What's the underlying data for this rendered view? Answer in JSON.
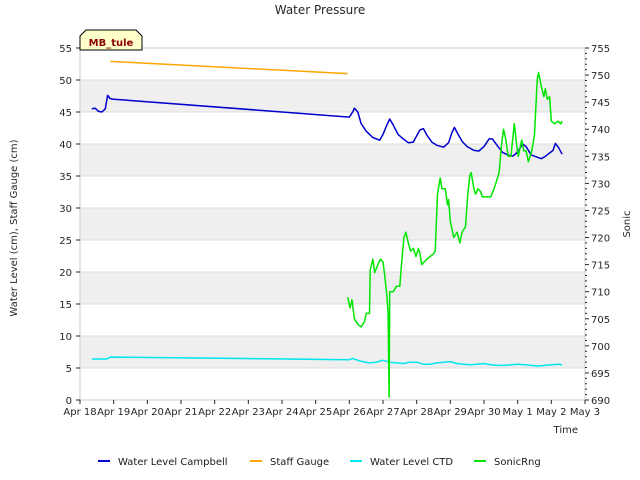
{
  "chart_data": {
    "type": "line",
    "title": "Water Pressure",
    "site_label": "MB_tule",
    "xlabel": "Time",
    "ylabel": "Water Level (cm), Staff Gauge (cm)",
    "y2label": "Sonic",
    "x_tick_labels": [
      "Apr 18",
      "Apr 19",
      "Apr 20",
      "Apr 21",
      "Apr 22",
      "Apr 23",
      "Apr 24",
      "Apr 25",
      "Apr 26",
      "Apr 27",
      "Apr 28",
      "Apr 29",
      "Apr 30",
      "May 1",
      "May 2",
      "May 3"
    ],
    "x_range_days": [
      0,
      15
    ],
    "ylim": [
      0,
      55
    ],
    "y_ticks": [
      0,
      5,
      10,
      15,
      20,
      25,
      30,
      35,
      40,
      45,
      50,
      55
    ],
    "y2lim": [
      690,
      755
    ],
    "y2_ticks": [
      690,
      695,
      700,
      705,
      710,
      715,
      720,
      725,
      730,
      735,
      740,
      745,
      750,
      755
    ],
    "series": [
      {
        "name": "Water Level Campbell",
        "axis": "left",
        "color": "#0000cd",
        "points": [
          [
            0.35,
            45.5
          ],
          [
            0.45,
            45.6
          ],
          [
            0.55,
            45.1
          ],
          [
            0.65,
            45.0
          ],
          [
            0.75,
            45.5
          ],
          [
            0.82,
            47.6
          ],
          [
            0.9,
            47.1
          ],
          [
            1.0,
            47.0
          ],
          [
            8.0,
            44.2
          ],
          [
            8.1,
            45.0
          ],
          [
            8.15,
            45.6
          ],
          [
            8.25,
            45.0
          ],
          [
            8.35,
            43.2
          ],
          [
            8.5,
            42.0
          ],
          [
            8.7,
            41.0
          ],
          [
            8.9,
            40.6
          ],
          [
            9.0,
            41.5
          ],
          [
            9.1,
            42.8
          ],
          [
            9.2,
            43.9
          ],
          [
            9.3,
            43.0
          ],
          [
            9.45,
            41.5
          ],
          [
            9.6,
            40.8
          ],
          [
            9.75,
            40.2
          ],
          [
            9.9,
            40.3
          ],
          [
            10.0,
            41.3
          ],
          [
            10.1,
            42.2
          ],
          [
            10.2,
            42.4
          ],
          [
            10.3,
            41.4
          ],
          [
            10.45,
            40.3
          ],
          [
            10.6,
            39.8
          ],
          [
            10.8,
            39.5
          ],
          [
            10.95,
            40.2
          ],
          [
            11.05,
            41.8
          ],
          [
            11.12,
            42.6
          ],
          [
            11.2,
            41.8
          ],
          [
            11.35,
            40.4
          ],
          [
            11.5,
            39.6
          ],
          [
            11.7,
            39.0
          ],
          [
            11.85,
            38.9
          ],
          [
            12.0,
            39.6
          ],
          [
            12.15,
            40.8
          ],
          [
            12.25,
            40.8
          ],
          [
            12.4,
            39.7
          ],
          [
            12.55,
            38.7
          ],
          [
            12.7,
            38.3
          ],
          [
            12.85,
            38.1
          ],
          [
            12.95,
            38.5
          ],
          [
            13.05,
            39.2
          ],
          [
            13.15,
            40.0
          ],
          [
            13.25,
            39.6
          ],
          [
            13.4,
            38.3
          ],
          [
            13.55,
            38.0
          ],
          [
            13.7,
            37.7
          ],
          [
            13.8,
            38.0
          ],
          [
            13.95,
            38.6
          ],
          [
            14.05,
            39.0
          ],
          [
            14.12,
            40.1
          ],
          [
            14.22,
            39.4
          ],
          [
            14.32,
            38.4
          ]
        ]
      },
      {
        "name": "Staff Gauge",
        "axis": "left",
        "color": "#ffa500",
        "points": [
          [
            0.9,
            52.9
          ],
          [
            7.95,
            51.0
          ]
        ]
      },
      {
        "name": "Water Level CTD",
        "axis": "left",
        "color": "#00e5ee",
        "points": [
          [
            0.35,
            6.4
          ],
          [
            0.8,
            6.4
          ],
          [
            0.9,
            6.7
          ],
          [
            8.0,
            6.3
          ],
          [
            8.1,
            6.5
          ],
          [
            8.25,
            6.2
          ],
          [
            8.4,
            6.0
          ],
          [
            8.6,
            5.8
          ],
          [
            8.8,
            5.9
          ],
          [
            9.0,
            6.2
          ],
          [
            9.2,
            5.9
          ],
          [
            9.4,
            5.8
          ],
          [
            9.6,
            5.7
          ],
          [
            9.8,
            5.9
          ],
          [
            10.0,
            5.9
          ],
          [
            10.2,
            5.6
          ],
          [
            10.4,
            5.6
          ],
          [
            10.6,
            5.8
          ],
          [
            10.8,
            5.9
          ],
          [
            11.0,
            6.0
          ],
          [
            11.2,
            5.7
          ],
          [
            11.4,
            5.6
          ],
          [
            11.6,
            5.5
          ],
          [
            11.8,
            5.6
          ],
          [
            12.0,
            5.7
          ],
          [
            12.2,
            5.5
          ],
          [
            12.4,
            5.4
          ],
          [
            12.6,
            5.4
          ],
          [
            12.8,
            5.5
          ],
          [
            13.0,
            5.6
          ],
          [
            13.2,
            5.5
          ],
          [
            13.4,
            5.4
          ],
          [
            13.6,
            5.3
          ],
          [
            13.8,
            5.4
          ],
          [
            14.0,
            5.5
          ],
          [
            14.2,
            5.6
          ],
          [
            14.32,
            5.5
          ]
        ]
      },
      {
        "name": "SonicRng",
        "axis": "right",
        "color": "#00e600",
        "points": [
          [
            7.95,
            709
          ],
          [
            8.02,
            707
          ],
          [
            8.08,
            708.5
          ],
          [
            8.15,
            705
          ],
          [
            8.25,
            704
          ],
          [
            8.35,
            703.5
          ],
          [
            8.45,
            704.5
          ],
          [
            8.5,
            706
          ],
          [
            8.6,
            706
          ],
          [
            8.62,
            714
          ],
          [
            8.7,
            716
          ],
          [
            8.75,
            713.5
          ],
          [
            8.85,
            715
          ],
          [
            8.92,
            716
          ],
          [
            9.0,
            715.5
          ],
          [
            9.05,
            713
          ],
          [
            9.12,
            709
          ],
          [
            9.15,
            706
          ],
          [
            9.18,
            690.5
          ],
          [
            9.2,
            710
          ],
          [
            9.3,
            710
          ],
          [
            9.4,
            711
          ],
          [
            9.5,
            711
          ],
          [
            9.55,
            715
          ],
          [
            9.62,
            720
          ],
          [
            9.68,
            721
          ],
          [
            9.75,
            719
          ],
          [
            9.82,
            717.5
          ],
          [
            9.9,
            718
          ],
          [
            9.98,
            716.5
          ],
          [
            10.05,
            718
          ],
          [
            10.1,
            717
          ],
          [
            10.15,
            715
          ],
          [
            10.3,
            716
          ],
          [
            10.5,
            717
          ],
          [
            10.55,
            717.5
          ],
          [
            10.62,
            728
          ],
          [
            10.7,
            731
          ],
          [
            10.75,
            729
          ],
          [
            10.85,
            729
          ],
          [
            10.92,
            726
          ],
          [
            10.95,
            727
          ],
          [
            11.0,
            723
          ],
          [
            11.1,
            720
          ],
          [
            11.2,
            721
          ],
          [
            11.28,
            719
          ],
          [
            11.35,
            721
          ],
          [
            11.45,
            722
          ],
          [
            11.52,
            728
          ],
          [
            11.58,
            731.5
          ],
          [
            11.62,
            732
          ],
          [
            11.7,
            729
          ],
          [
            11.75,
            728
          ],
          [
            11.82,
            729
          ],
          [
            11.9,
            728.5
          ],
          [
            11.95,
            727.5
          ],
          [
            12.05,
            727.5
          ],
          [
            12.2,
            727.5
          ],
          [
            12.3,
            729
          ],
          [
            12.45,
            732
          ],
          [
            12.52,
            737
          ],
          [
            12.58,
            740
          ],
          [
            12.65,
            738
          ],
          [
            12.72,
            735
          ],
          [
            12.8,
            735
          ],
          [
            12.9,
            741
          ],
          [
            12.97,
            737
          ],
          [
            13.02,
            735
          ],
          [
            13.12,
            738
          ],
          [
            13.18,
            736
          ],
          [
            13.25,
            736
          ],
          [
            13.32,
            734
          ],
          [
            13.42,
            736
          ],
          [
            13.5,
            739
          ],
          [
            13.58,
            749
          ],
          [
            13.62,
            750.5
          ],
          [
            13.7,
            748
          ],
          [
            13.78,
            746
          ],
          [
            13.82,
            747.5
          ],
          [
            13.88,
            745.5
          ],
          [
            13.95,
            746
          ],
          [
            14.0,
            741.5
          ],
          [
            14.1,
            741
          ],
          [
            14.2,
            741.5
          ],
          [
            14.28,
            741
          ],
          [
            14.32,
            741.5
          ]
        ]
      }
    ],
    "legend": {
      "placement": "bottom",
      "entries": [
        {
          "label": "Water Level Campbell",
          "color": "#0000cd"
        },
        {
          "label": "Staff Gauge",
          "color": "#ffa500"
        },
        {
          "label": "Water Level CTD",
          "color": "#00e5ee"
        },
        {
          "label": "SonicRng",
          "color": "#00e600"
        }
      ]
    }
  }
}
